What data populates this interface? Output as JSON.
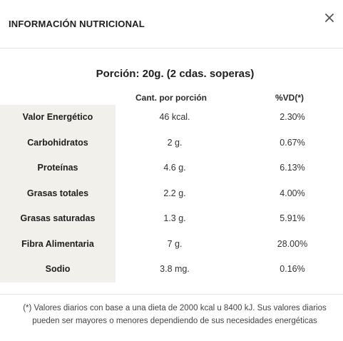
{
  "header": {
    "title": "INFORMACIÓN NUTRICIONAL",
    "close_icon": "close-icon"
  },
  "portion": "Porción: 20g. (2 cdas. soperas)",
  "columns": {
    "amount": "Cant. por porción",
    "dv": "%VD(*)"
  },
  "rows": [
    {
      "name": "Valor Energético",
      "amount": "46 kcal.",
      "dv": "2.30%"
    },
    {
      "name": "Carbohidratos",
      "amount": "2 g.",
      "dv": "0.67%"
    },
    {
      "name": "Proteínas",
      "amount": "4.6 g.",
      "dv": "6.13%"
    },
    {
      "name": "Grasas totales",
      "amount": "2.2 g.",
      "dv": "4.00%"
    },
    {
      "name": "Grasas saturadas",
      "amount": "1.3 g.",
      "dv": "5.91%"
    },
    {
      "name": "Fibra Alimentaria",
      "amount": "7 g.",
      "dv": "28.00%"
    },
    {
      "name": "Sodio",
      "amount": "3.8 mg.",
      "dv": "0.16%"
    }
  ],
  "footnote": "(*) Valores diarios con base a una dieta de 2000 kcal u 8400 kJ. Sus valores diarios pueden ser mayores o menores dependiendo de sus necesidades energéticas",
  "colors": {
    "label_background": "#f1f0ea",
    "divider": "#e4e4e4",
    "text": "#1e1e1e"
  }
}
